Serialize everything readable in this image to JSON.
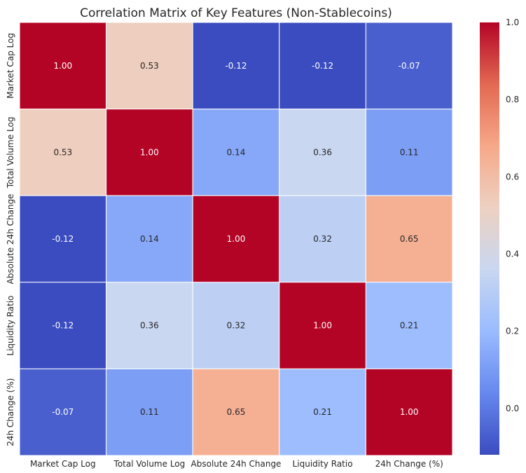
{
  "chart_data": {
    "type": "heatmap",
    "title": "Correlation Matrix of Key Features (Non-Stablecoins)",
    "xlabel": "",
    "ylabel": "",
    "row_labels": [
      "Market Cap Log",
      "Total Volume Log",
      "Absolute 24h Change",
      "Liquidity Ratio",
      "24h Change (%)"
    ],
    "col_labels": [
      "Market Cap Log",
      "Total Volume Log",
      "Absolute 24h Change",
      "Liquidity Ratio",
      "24h Change (%)"
    ],
    "values": [
      [
        1.0,
        0.53,
        -0.12,
        -0.12,
        -0.07
      ],
      [
        0.53,
        1.0,
        0.14,
        0.36,
        0.11
      ],
      [
        -0.12,
        0.14,
        1.0,
        0.32,
        0.65
      ],
      [
        -0.12,
        0.36,
        0.32,
        1.0,
        0.21
      ],
      [
        -0.07,
        0.11,
        0.65,
        0.21,
        1.0
      ]
    ],
    "value_format": "0.00",
    "colormap": "coolwarm",
    "color_range": [
      -0.12,
      1.0
    ],
    "colorbar_ticks": [
      "0.0",
      "0.2",
      "0.4",
      "0.6",
      "0.8",
      "1.0"
    ],
    "colorbar_tick_values": [
      0.0,
      0.2,
      0.4,
      0.6,
      0.8,
      1.0
    ],
    "colormap_stops": [
      "#3b4cc0",
      "#6788ee",
      "#9abbff",
      "#c9d7f0",
      "#edd1c2",
      "#f7a889",
      "#e26952",
      "#b40426"
    ],
    "cell_border_color": "#ffffff",
    "text_dark": "#262626",
    "text_light": "#ffffff"
  }
}
